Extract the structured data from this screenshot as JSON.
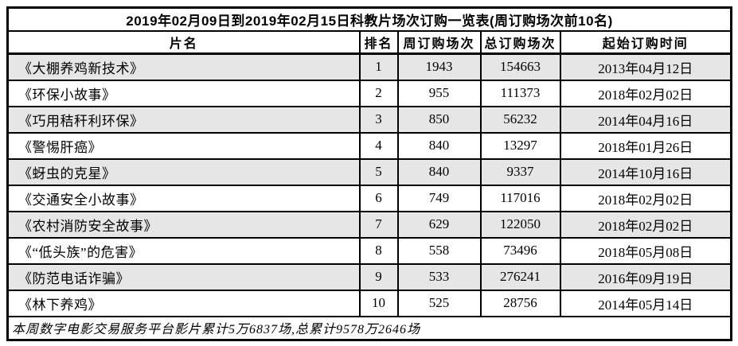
{
  "table": {
    "title": "2019年02月09日到2019年02月15日科教片场次订购一览表(周订购场次前10名)",
    "columns": [
      "片名",
      "排名",
      "周订购场次",
      "总订购场次",
      "起始订购时间"
    ],
    "rows": [
      {
        "name": "《大棚养鸡新技术》",
        "rank": "1",
        "weekly_orders": "1943",
        "total_orders": "154663",
        "start_date": "2013年04月12日"
      },
      {
        "name": "《环保小故事》",
        "rank": "2",
        "weekly_orders": "955",
        "total_orders": "111373",
        "start_date": "2018年02月02日"
      },
      {
        "name": "《巧用秸秆利环保》",
        "rank": "3",
        "weekly_orders": "850",
        "total_orders": "56232",
        "start_date": "2014年04月16日"
      },
      {
        "name": "《警惕肝癌》",
        "rank": "4",
        "weekly_orders": "840",
        "total_orders": "13297",
        "start_date": "2018年01月26日"
      },
      {
        "name": "《蚜虫的克星》",
        "rank": "5",
        "weekly_orders": "840",
        "total_orders": "9337",
        "start_date": "2014年10月16日"
      },
      {
        "name": "《交通安全小故事》",
        "rank": "6",
        "weekly_orders": "749",
        "total_orders": "117016",
        "start_date": "2018年02月02日"
      },
      {
        "name": "《农村消防安全故事》",
        "rank": "7",
        "weekly_orders": "629",
        "total_orders": "122050",
        "start_date": "2018年02月02日"
      },
      {
        "name": "《“低头族”的危害》",
        "rank": "8",
        "weekly_orders": "558",
        "total_orders": "73496",
        "start_date": "2018年05月08日"
      },
      {
        "name": "《防范电话诈骗》",
        "rank": "9",
        "weekly_orders": "533",
        "total_orders": "276241",
        "start_date": "2016年09月19日"
      },
      {
        "name": "《林下养鸡》",
        "rank": "10",
        "weekly_orders": "525",
        "total_orders": "28756",
        "start_date": "2014年05月14日"
      }
    ],
    "footer": "本周数字电影交易服务平台影片累计5万6837场,总累计9578万2646场"
  },
  "colors": {
    "row_stripe": "#e6e6e6",
    "border": "#000000",
    "background": "#ffffff",
    "text": "#000000"
  }
}
